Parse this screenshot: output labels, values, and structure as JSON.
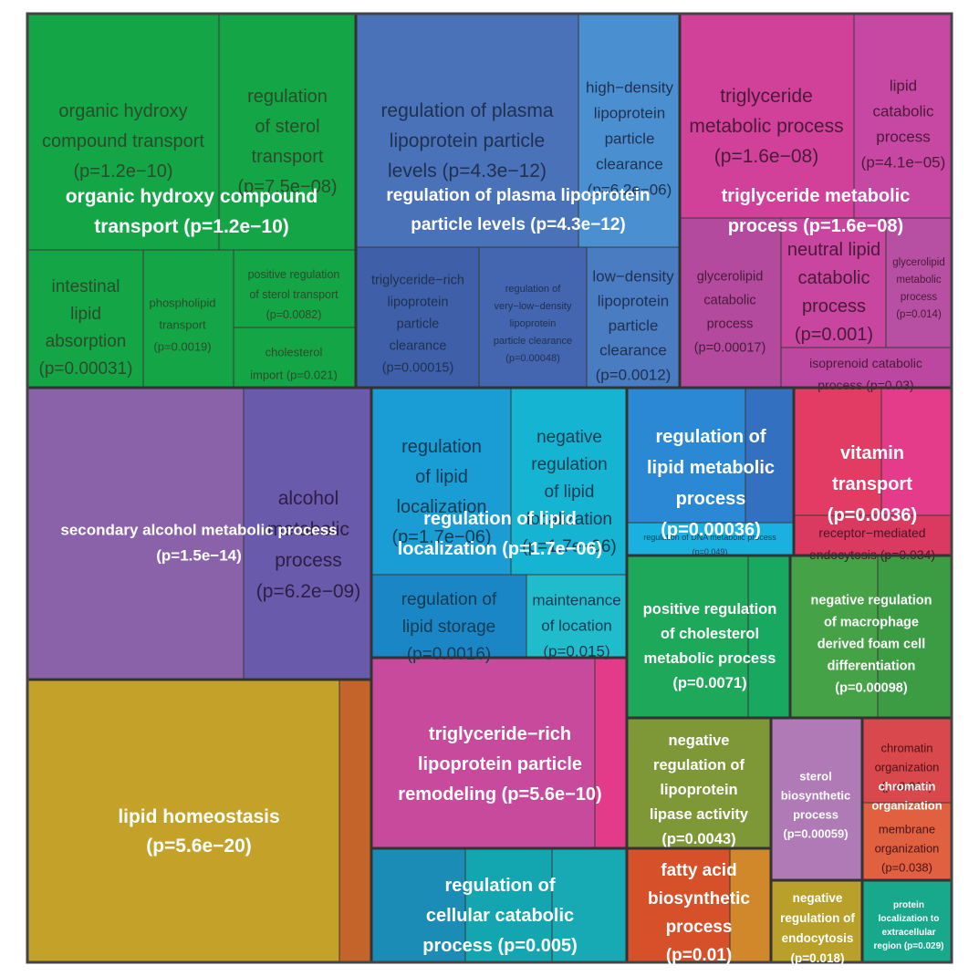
{
  "chart_data": {
    "type": "treemap",
    "title": "",
    "groups": [
      {
        "label": "organic hydroxy compound transport (p=1.2e−10)",
        "color": "#1a9e46",
        "children": [
          {
            "label": "organic hydroxy compound transport (p=1.2e−10)",
            "color": "#14a646"
          },
          {
            "label": "regulation of sterol transport (p=7.5e−08)",
            "color": "#14a646"
          },
          {
            "label": "intestinal lipid absorption (p=0.00031)",
            "color": "#14a646"
          },
          {
            "label": "phospholipid transport (p=0.0019)",
            "color": "#14a646"
          },
          {
            "label": "positive regulation of sterol transport (p=0.0082)",
            "color": "#14a646"
          },
          {
            "label": "cholesterol import (p=0.021)",
            "color": "#14a646"
          }
        ]
      },
      {
        "label": "regulation of plasma lipoprotein particle levels (p=4.3e−12)",
        "color": "#4a72b8",
        "children": [
          {
            "label": "regulation of plasma lipoprotein particle levels (p=4.3e−12)",
            "color": "#4a72b8"
          },
          {
            "label": "high−density lipoprotein particle clearance (p=6.2e−06)",
            "color": "#4a90d0"
          },
          {
            "label": "triglyceride−rich lipoprotein particle clearance (p=0.00015)",
            "color": "#3f5fa8"
          },
          {
            "label": "regulation of very−low−density lipoprotein particle clearance (p=0.00048)",
            "color": "#4466b0"
          },
          {
            "label": "low−density lipoprotein particle clearance (p=0.0012)",
            "color": "#4a7cc2"
          }
        ]
      },
      {
        "label": "triglyceride metabolic process (p=1.6e−08)",
        "color": "#cc3f96",
        "children": [
          {
            "label": "triglyceride metabolic process (p=1.6e−08)",
            "color": "#d1419a"
          },
          {
            "label": "lipid catabolic process (p=4.1e−05)",
            "color": "#c648a2"
          },
          {
            "label": "glycerolipid catabolic process (p=0.00017)",
            "color": "#b34a9e"
          },
          {
            "label": "neutral lipid catabolic process (p=0.001)",
            "color": "#c845a0"
          },
          {
            "label": "glycerolipid metabolic process (p=0.014)",
            "color": "#b74fa2"
          },
          {
            "label": "isoprenoid catabolic process (p=0.03)",
            "color": "#bb47a0"
          }
        ]
      },
      {
        "label": "secondary alcohol metabolic process (p=1.5e−14)",
        "color": "#8a62aa",
        "children": [
          {
            "label": "secondary alcohol metabolic process (p=1.5e−14)",
            "color": "#8a62aa"
          },
          {
            "label": "alcohol metabolic process (p=6.2e−09)",
            "color": "#6a5aac"
          }
        ]
      },
      {
        "label": "lipid homeostasis (p=5.6e−20)",
        "color": "#c4a22a",
        "children": [
          {
            "label": "lipid homeostasis (p=5.6e−20)",
            "color": "#c4a22a"
          },
          {
            "label": "",
            "color": "#c4642a"
          }
        ]
      },
      {
        "label": "regulation of lipid localization (p=1.7e−06)",
        "color": "#1aa6d2",
        "children": [
          {
            "label": "regulation of lipid localization (p=1.7e−06)",
            "color": "#1a9cd4"
          },
          {
            "label": "negative regulation of lipid localization (p=1.7e−06)",
            "color": "#14b4d2"
          },
          {
            "label": "regulation of lipid storage (p=0.0016)",
            "color": "#1a86c6"
          },
          {
            "label": "maintenance of location (p=0.015)",
            "color": "#20bccc"
          }
        ]
      },
      {
        "label": "regulation of lipid metabolic process (p=0.00036)",
        "color": "#2a84d0",
        "children": [
          {
            "label": "regulation of lipid metabolic process (p=0.00036)",
            "color": "#2a88d4"
          },
          {
            "label": "",
            "color": "#3470c0"
          },
          {
            "label": "regulation of DNA metabolic process (p=0.049)",
            "color": "#1ab0e0"
          }
        ]
      },
      {
        "label": "vitamin transport (p=0.0036)",
        "color": "#e23c64",
        "children": [
          {
            "label": "vitamin transport (p=0.0036)",
            "color": "#e23c64"
          },
          {
            "label": "",
            "color": "#e43c8a"
          },
          {
            "label": "receptor−mediated endocytosis (p=0.034)",
            "color": "#da3a60"
          }
        ]
      },
      {
        "label": "triglyceride−rich lipoprotein particle remodeling (p=5.6e−10)",
        "color": "#c84a9c",
        "children": [
          {
            "label": "triglyceride−rich lipoprotein particle remodeling (p=5.6e−10)",
            "color": "#c84a9c"
          },
          {
            "label": "",
            "color": "#e43a8a"
          }
        ]
      },
      {
        "label": "positive regulation of cholesterol metabolic process (p=0.0071)",
        "color": "#1ea85a",
        "children": [
          {
            "label": "positive regulation of cholesterol metabolic process (p=0.0071)",
            "color": "#1ea85a"
          },
          {
            "label": "",
            "color": "#18a860"
          }
        ]
      },
      {
        "label": "negative regulation of macrophage derived foam cell differentiation (p=0.00098)",
        "color": "#46a246",
        "children": [
          {
            "label": "negative regulation of macrophage derived foam cell differentiation (p=0.00098)",
            "color": "#46a246"
          },
          {
            "label": "",
            "color": "#3c9c44"
          }
        ]
      },
      {
        "label": "regulation of cellular catabolic process (p=0.005)",
        "color": "#1a9ab4",
        "children": [
          {
            "label": "regulation of cellular catabolic process (p=0.005)",
            "color": "#1a8cb6"
          },
          {
            "label": "",
            "color": "#14a6b0"
          },
          {
            "label": "",
            "color": "#18aab4"
          }
        ]
      },
      {
        "label": "negative regulation of lipoprotein lipase activity (p=0.0043)",
        "color": "#7e9838",
        "children": [
          {
            "label": "negative regulation of lipoprotein lipase activity (p=0.0043)",
            "color": "#7e9838"
          }
        ]
      },
      {
        "label": "fatty acid biosynthetic process (p=0.01)",
        "color": "#d6502a",
        "children": [
          {
            "label": "fatty acid biosynthetic process (p=0.01)",
            "color": "#d6502a"
          },
          {
            "label": "",
            "color": "#d0882a"
          }
        ]
      },
      {
        "label": "sterol biosynthetic process (p=0.00059)",
        "color": "#b07ab6",
        "children": [
          {
            "label": "sterol biosynthetic process (p=0.00059)",
            "color": "#b07ab6"
          }
        ]
      },
      {
        "label": "chromatin organization (p=0.016)",
        "color": "#d8484c",
        "children": [
          {
            "label": "chromatin organization (p=0.016)",
            "color": "#d8484c"
          },
          {
            "label": "membrane organization (p=0.038)",
            "color": "#e06040"
          }
        ]
      },
      {
        "label": "negative regulation of endocytosis (p=0.018)",
        "color": "#b8a02a",
        "children": [
          {
            "label": "negative regulation of endocytosis (p=0.018)",
            "color": "#b8a02a"
          }
        ]
      },
      {
        "label": "protein localization to extracellular region (p=0.029)",
        "color": "#18a88c",
        "children": [
          {
            "label": "protein localization to extracellular region (p=0.029)",
            "color": "#18a88c"
          }
        ]
      }
    ]
  },
  "texts": {
    "g1_big": [
      "organic hydroxy compound",
      "transport (p=1.2e−10)"
    ],
    "g1_c1": [
      "organic hydroxy",
      "compound transport",
      "(p=1.2e−10)"
    ],
    "g1_c2": [
      "regulation",
      "of sterol",
      "transport",
      "(p=7.5e−08)"
    ],
    "g1_c3": [
      "intestinal",
      "lipid",
      "absorption",
      "(p=0.00031)"
    ],
    "g1_c4": [
      "phospholipid",
      "transport",
      "(p=0.0019)"
    ],
    "g1_c5": [
      "positive regulation",
      "of sterol transport",
      "(p=0.0082)"
    ],
    "g1_c6": [
      "cholesterol",
      "import (p=0.021)"
    ],
    "g2_big": [
      "regulation of plasma lipoprotein",
      "particle levels (p=4.3e−12)"
    ],
    "g2_c1": [
      "regulation of plasma",
      "lipoprotein particle",
      "levels (p=4.3e−12)"
    ],
    "g2_c2": [
      "high−density",
      "lipoprotein",
      "particle",
      "clearance",
      "(p=6.2e−06)"
    ],
    "g2_c3": [
      "triglyceride−rich",
      "lipoprotein",
      "particle",
      "clearance",
      "(p=0.00015)"
    ],
    "g2_c4": [
      "regulation of",
      "very−low−density",
      "lipoprotein",
      "particle clearance",
      "(p=0.00048)"
    ],
    "g2_c5": [
      "low−density",
      "lipoprotein",
      "particle",
      "clearance",
      "(p=0.0012)"
    ],
    "g3_big": [
      "triglyceride metabolic",
      "process (p=1.6e−08)"
    ],
    "g3_c1": [
      "triglyceride",
      "metabolic process",
      "(p=1.6e−08)"
    ],
    "g3_c2": [
      "lipid",
      "catabolic",
      "process",
      "(p=4.1e−05)"
    ],
    "g3_c3": [
      "glycerolipid",
      "catabolic",
      "process",
      "(p=0.00017)"
    ],
    "g3_c4": [
      "neutral lipid",
      "catabolic",
      "process",
      "(p=0.001)"
    ],
    "g3_c5": [
      "glycerolipid",
      "metabolic",
      "process",
      "(p=0.014)"
    ],
    "g3_c6": [
      "isoprenoid catabolic",
      "process (p=0.03)"
    ],
    "g4_big": [
      "secondary alcohol metabolic process",
      "(p=1.5e−14)"
    ],
    "g4_c2": [
      "alcohol",
      "metabolic",
      "process",
      "(p=6.2e−09)"
    ],
    "g5_big": [
      "lipid homeostasis",
      "(p=5.6e−20)"
    ],
    "g6_big": [
      "regulation of lipid",
      "localization (p=1.7e−06)"
    ],
    "g6_c1": [
      "regulation",
      "of lipid",
      "localization",
      "(p=1.7e−06)"
    ],
    "g6_c2": [
      "negative",
      "regulation",
      "of lipid",
      "localization",
      "(p=1.7e−06)"
    ],
    "g6_c3": [
      "regulation of",
      "lipid storage",
      "(p=0.0016)"
    ],
    "g6_c4": [
      "maintenance",
      "of location",
      "(p=0.015)"
    ],
    "g7_big": [
      "regulation of",
      "lipid metabolic",
      "process",
      "(p=0.00036)"
    ],
    "g7_c3": [
      "regulation of DNA metabolic process",
      "(p=0.049)"
    ],
    "g8_big": [
      "vitamin",
      "transport",
      "(p=0.0036)"
    ],
    "g8_c3": [
      "receptor−mediated",
      "endocytosis (p=0.034)"
    ],
    "g9_big": [
      "triglyceride−rich",
      "lipoprotein particle",
      "remodeling (p=5.6e−10)"
    ],
    "g10_big": [
      "positive regulation",
      "of cholesterol",
      "metabolic process",
      "(p=0.0071)"
    ],
    "g11_big": [
      "negative regulation",
      "of macrophage",
      "derived foam cell",
      "differentiation",
      "(p=0.00098)"
    ],
    "g12_big": [
      "regulation of",
      "cellular catabolic",
      "process (p=0.005)"
    ],
    "g13_big": [
      "negative",
      "regulation of",
      "lipoprotein",
      "lipase activity",
      "(p=0.0043)"
    ],
    "g14_big": [
      "fatty acid",
      "biosynthetic",
      "process",
      "(p=0.01)"
    ],
    "g15_big": [
      "sterol",
      "biosynthetic",
      "process",
      "(p=0.00059)"
    ],
    "g16_c1": [
      "chromatin",
      "organization",
      "(p=0.016)"
    ],
    "g16_c2": [
      "membrane",
      "organization",
      "(p=0.038)"
    ],
    "g16_big": [
      "chromatin",
      "organization"
    ],
    "g17_big": [
      "negative",
      "regulation of",
      "endocytosis",
      "(p=0.018)"
    ],
    "g18_big": [
      "protein",
      "localization to",
      "extracellular",
      "region (p=0.029)"
    ]
  }
}
